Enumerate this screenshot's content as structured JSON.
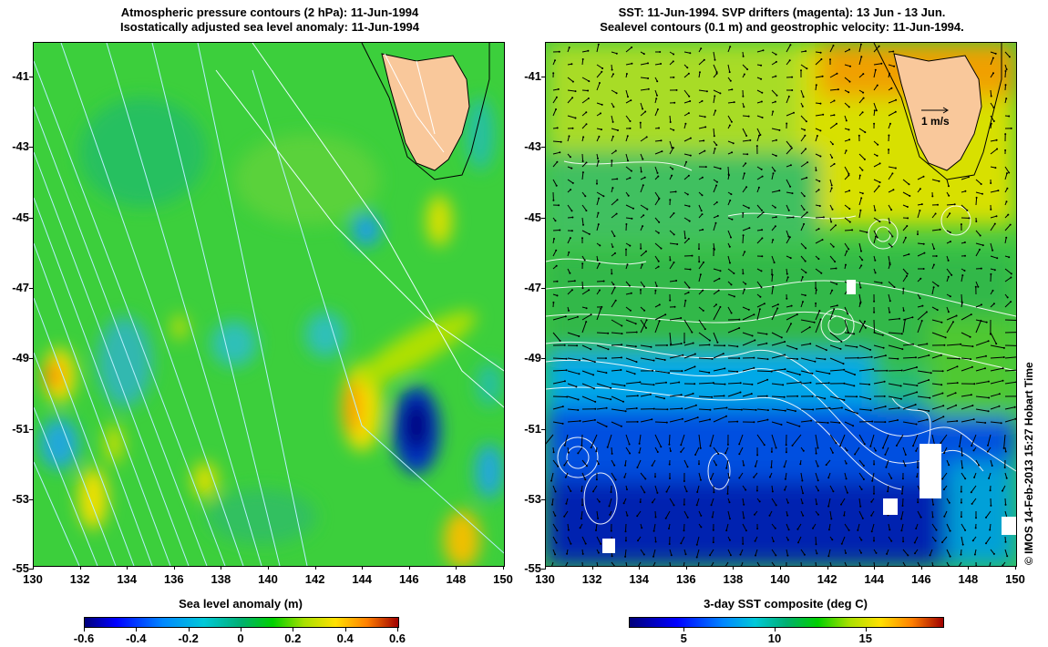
{
  "left_panel": {
    "title_line1": "Atmospheric pressure contours (2 hPa): 11-Jun-1994",
    "title_line2": "Isostatically adjusted sea level anomaly: 11-Jun-1994",
    "y_ticks": [
      "-41",
      "-43",
      "-45",
      "-47",
      "-49",
      "-51",
      "-53",
      "-55"
    ],
    "x_ticks": [
      "130",
      "132",
      "134",
      "136",
      "138",
      "140",
      "142",
      "144",
      "146",
      "148",
      "150"
    ],
    "colorbar_title": "Sea level anomaly (m)",
    "colorbar_ticks": [
      "-0.6",
      "-0.4",
      "-0.2",
      "0",
      "0.2",
      "0.4",
      "0.6"
    ]
  },
  "right_panel": {
    "title_line1": "SST: 11-Jun-1994. SVP drifters (magenta): 13 Jun - 13 Jun.",
    "title_line2": "Sealevel contours (0.1 m) and geostrophic velocity: 11-Jun-1994.",
    "velocity_scale_label": "1 m/s",
    "y_ticks": [
      "-41",
      "-43",
      "-45",
      "-47",
      "-49",
      "-51",
      "-53",
      "-55"
    ],
    "x_ticks": [
      "130",
      "132",
      "134",
      "136",
      "138",
      "140",
      "142",
      "144",
      "146",
      "148",
      "150"
    ],
    "colorbar_title": "3-day SST composite (deg C)",
    "colorbar_ticks": [
      "5",
      "10",
      "15"
    ]
  },
  "credit": "© IMOS 14-Feb-2013 15:27 Hobart Time",
  "colors": {
    "land": "#f9c89b",
    "contour": "#ffffff",
    "coast": "#000000",
    "pressure_contour": "#b8f0ff"
  }
}
